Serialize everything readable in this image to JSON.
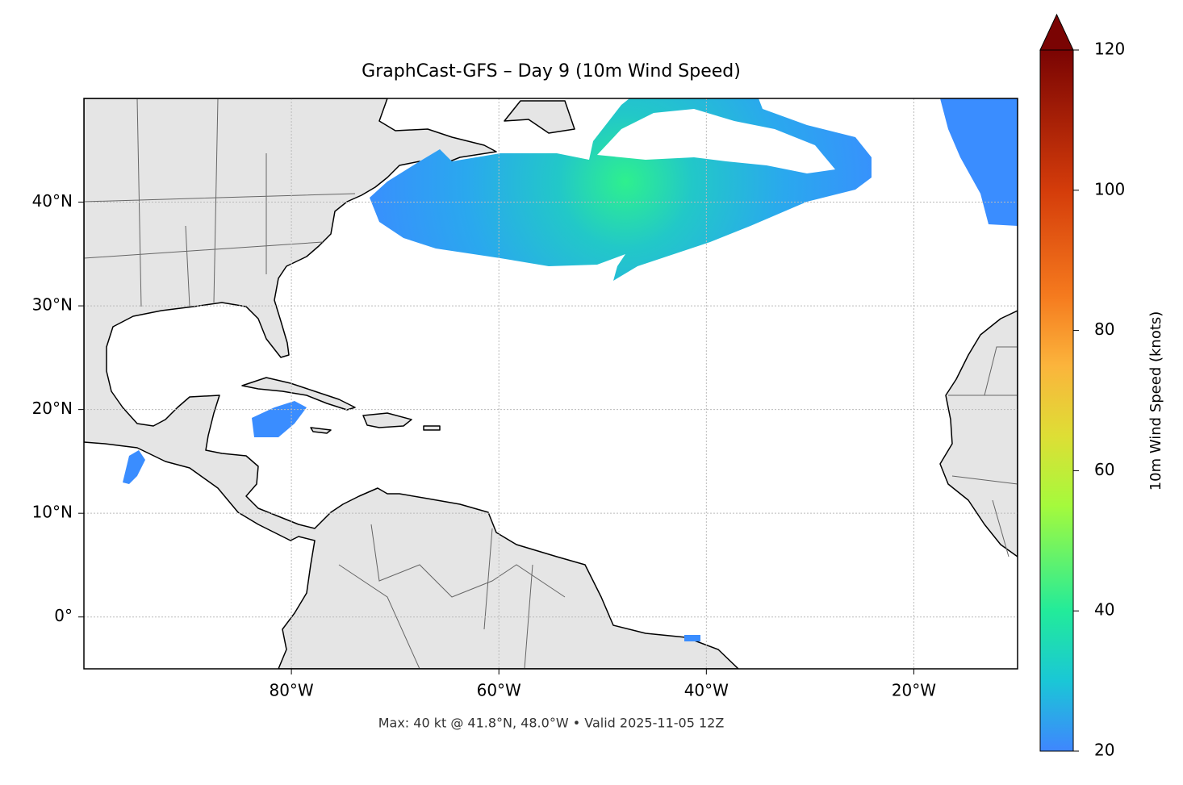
{
  "chart_data": {
    "type": "map",
    "title": "GraphCast-GFS – Day 9 (10m Wind Speed)",
    "footnote": "Max: 40 kt @ 41.8°N, 48.0°W • Valid 2025-11-05 12Z",
    "xlim": [
      -100,
      -10
    ],
    "ylim": [
      -5,
      50
    ],
    "xticks": [
      {
        "value": -80,
        "label": "80°W"
      },
      {
        "value": -60,
        "label": "60°W"
      },
      {
        "value": -40,
        "label": "40°W"
      },
      {
        "value": -20,
        "label": "20°W"
      }
    ],
    "yticks": [
      {
        "value": 0,
        "label": "0°"
      },
      {
        "value": 10,
        "label": "10°N"
      },
      {
        "value": 20,
        "label": "20°N"
      },
      {
        "value": 30,
        "label": "30°N"
      },
      {
        "value": 40,
        "label": "40°N"
      }
    ],
    "grid": true,
    "colorbar": {
      "label": "10m Wind Speed (knots)",
      "lim": [
        20,
        120
      ],
      "ticks": [
        20,
        40,
        60,
        80,
        100,
        120
      ],
      "extend": "max"
    }
  }
}
